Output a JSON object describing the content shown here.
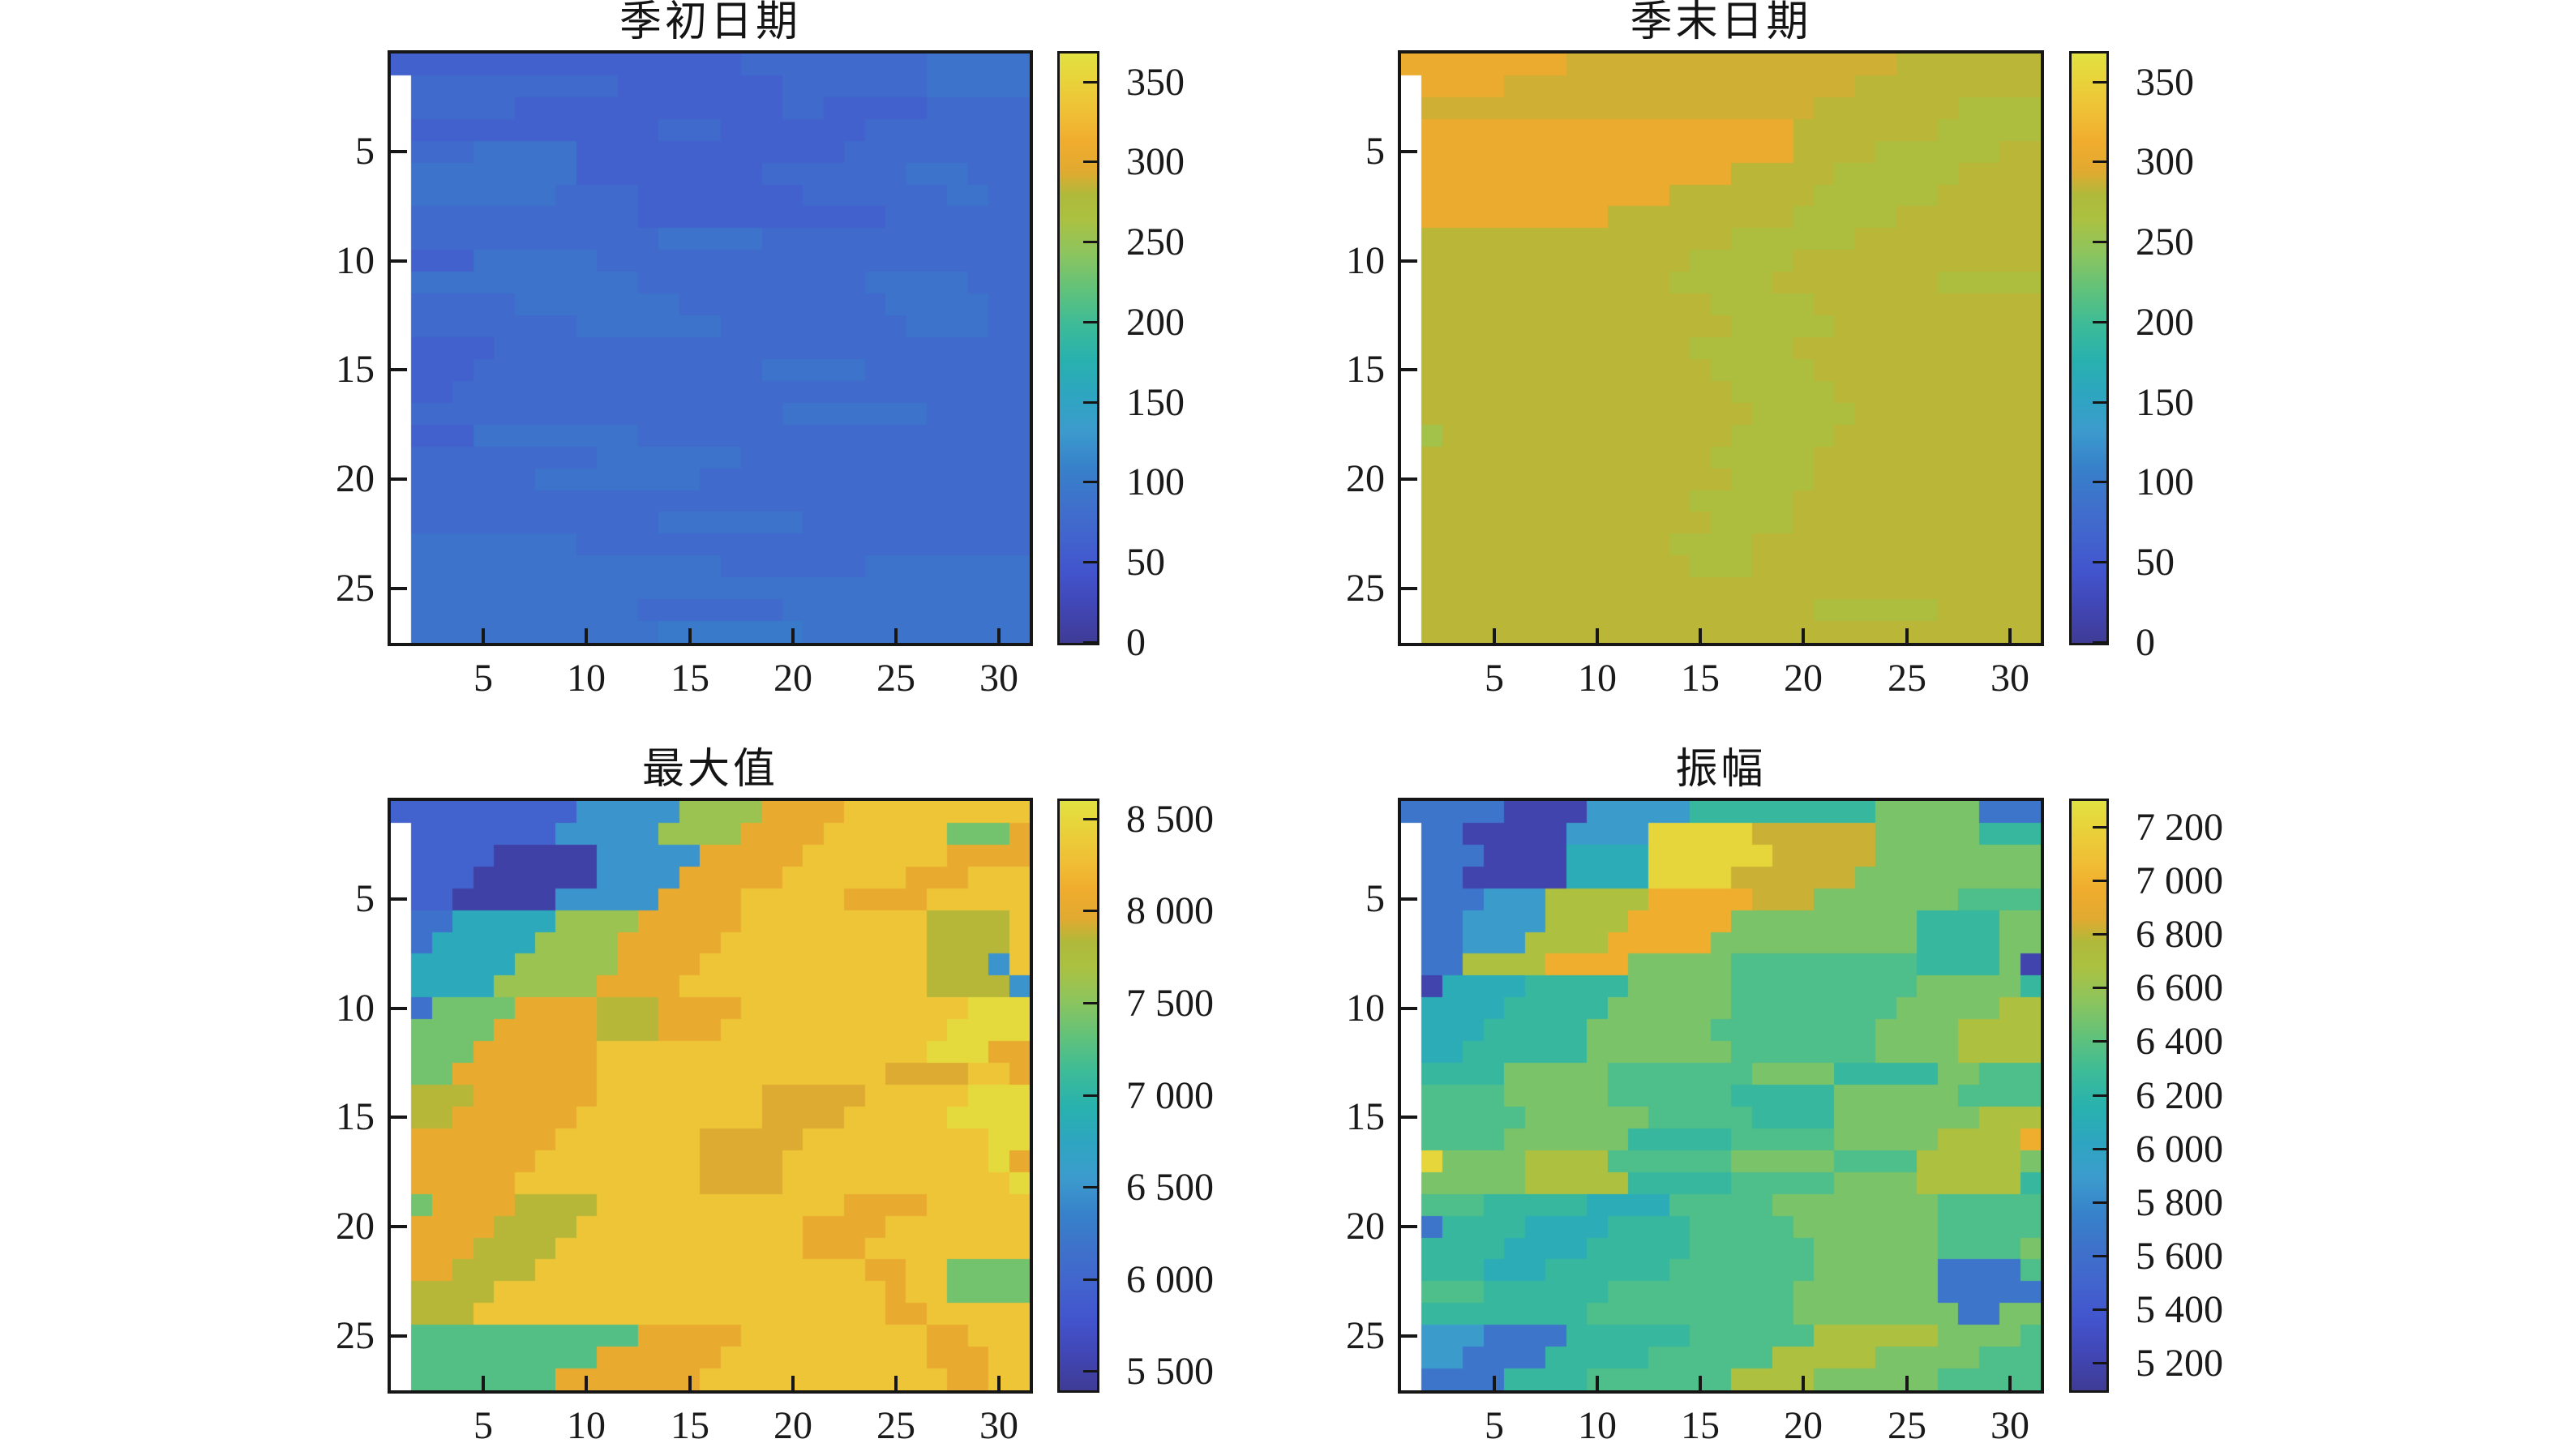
{
  "figure": {
    "background": "#ffffff",
    "axis_color": "#161616",
    "text_color": "#1a1a1a"
  },
  "colormap": {
    "name": "parula-like",
    "nan_color": "#ffffff",
    "stops": [
      [
        0.0,
        "#3f3c96"
      ],
      [
        0.06,
        "#4146b4"
      ],
      [
        0.12,
        "#4254cd"
      ],
      [
        0.18,
        "#4264cd"
      ],
      [
        0.24,
        "#3e72cb"
      ],
      [
        0.3,
        "#3782ca"
      ],
      [
        0.36,
        "#3c9bcd"
      ],
      [
        0.42,
        "#2ea5c0"
      ],
      [
        0.48,
        "#28b1ae"
      ],
      [
        0.54,
        "#3dbb98"
      ],
      [
        0.6,
        "#61c27a"
      ],
      [
        0.66,
        "#8cc45e"
      ],
      [
        0.72,
        "#acc141"
      ],
      [
        0.76,
        "#afb93a"
      ],
      [
        0.8,
        "#e1aa30"
      ],
      [
        0.85,
        "#f0ac2e"
      ],
      [
        0.89,
        "#f0bc34"
      ],
      [
        0.93,
        "#ecca38"
      ],
      [
        0.97,
        "#e6d83c"
      ],
      [
        1.0,
        "#e2e142"
      ]
    ]
  },
  "chart_data": [
    {
      "type": "heatmap",
      "title": "季初日期",
      "x_tick_values": [
        5,
        10,
        15,
        20,
        25,
        30
      ],
      "x_tick_labels": [
        "5",
        "10",
        "15",
        "20",
        "25",
        "30"
      ],
      "y_tick_values": [
        5,
        10,
        15,
        20,
        25
      ],
      "y_tick_labels": [
        "5",
        "10",
        "15",
        "20",
        "25"
      ],
      "n_cols": 31,
      "n_rows": 27,
      "vmin": 0,
      "vmax": 368,
      "colorbar_tick_values": [
        0,
        50,
        100,
        150,
        200,
        250,
        300,
        350
      ],
      "colorbar_tick_labels": [
        "0",
        "50",
        "100",
        "150",
        "200",
        "250",
        "300",
        "350"
      ],
      "nan_char": ".",
      "values_by_char": {
        "0": 52,
        "1": 62,
        "2": 76,
        "3": 90,
        "4": 100
      },
      "grid": [
        "1111111111111111122222222233333",
        ".222222222211111111222222233333",
        ".222221111111111111221111122222",
        ".111111111111222111111122222222",
        ".222333331111111111111222222222",
        ".333333331111111112222222333222",
        ".333333322221111111122222223322",
        ".222222222221111111111112222222",
        ".222222222222333332222222222222",
        ".111333333222222222222222222222",
        ".333333333332222222222233333222",
        ".222223333333322222222223333322",
        ".222222223333333222222222333322",
        ".111122222222222222222222222222",
        ".111222222222222223333322222222",
        ".112222222222222222222222222222",
        ".222222222222222222333333322222",
        ".111333333332222222222222222222",
        ".222222222333333322222222222222",
        ".222222333333332222222222222222",
        ".222222222222222222222222222222",
        ".222222222222333333322222222222",
        ".333333332222222222222222222222",
        ".333333333333333222222233333333",
        ".333333333333333333333333333333",
        ".333333333332222222333333333333",
        ".333333333333444444433333333333"
      ]
    },
    {
      "type": "heatmap",
      "title": "季末日期",
      "x_tick_values": [
        5,
        10,
        15,
        20,
        25,
        30
      ],
      "x_tick_labels": [
        "5",
        "10",
        "15",
        "20",
        "25",
        "30"
      ],
      "y_tick_values": [
        5,
        10,
        15,
        20,
        25
      ],
      "y_tick_labels": [
        "5",
        "10",
        "15",
        "20",
        "25"
      ],
      "n_cols": 31,
      "n_rows": 27,
      "vmin": 0,
      "vmax": 368,
      "colorbar_tick_values": [
        0,
        50,
        100,
        150,
        200,
        250,
        300,
        350
      ],
      "colorbar_tick_labels": [
        "0",
        "50",
        "100",
        "150",
        "200",
        "250",
        "300",
        "350"
      ],
      "nan_char": ".",
      "values_by_char": {
        "0": 258,
        "1": 270,
        "2": 283,
        "3": 289,
        "4": 306
      },
      "grid": [
        "4444444433333333333333332222222",
        ".444433333333333333333222222222",
        ".333333333333333333322222221111",
        ".444444444444444444222222211111",
        ".444444444444444444222211111122",
        ".444444444444444222221111112222",
        ".444444444444222222211111122222",
        ".444444444222222222111112222222",
        ".222222222222222111111222222222",
        ".222222222222211111222222222222",
        ".222222222222111112222222211111",
        ".222222222222221111122222222222",
        ".222222222222222111112222222222",
        ".222222222222211111222222222222",
        ".222222222222221111122222222222",
        ".222222222222222111112222222222",
        ".222222222222222211111222222222",
        ".022222222222222111112222222222",
        ".222222222222221111122222222222",
        ".222222222222222111122222222222",
        ".222222222222211111222222222222",
        ".222222222222221111222222222222",
        ".222222222222111122222222222222",
        ".222222222222211122222222222222",
        ".222222222222222222222222222222",
        ".222222222222222222211111122222",
        ".222222222222222222222222222222"
      ]
    },
    {
      "type": "heatmap",
      "title": "最大值",
      "x_tick_values": [
        5,
        10,
        15,
        20,
        25,
        30
      ],
      "x_tick_labels": [
        "5",
        "10",
        "15",
        "20",
        "25",
        "30"
      ],
      "y_tick_values": [
        5,
        10,
        15,
        20,
        25
      ],
      "y_tick_labels": [
        "5",
        "10",
        "15",
        "20",
        "25"
      ],
      "n_cols": 31,
      "n_rows": 27,
      "vmin": 5400,
      "vmax": 8600,
      "colorbar_tick_values": [
        5500,
        6000,
        6500,
        7000,
        7500,
        8000,
        8500
      ],
      "colorbar_tick_labels": [
        "5 500",
        "6 000",
        "6 500",
        "7 000",
        "7 500",
        "8 000",
        "8 500"
      ],
      "nan_char": ".",
      "values_by_char": {
        "0": 5500,
        "1": 5950,
        "2": 6150,
        "3": 6500,
        "4": 6800,
        "5": 7250,
        "6": 7400,
        "7": 7600,
        "8": 7850,
        "9": 8050,
        "a": 7950,
        "b": 8330,
        "c": 8520
      },
      "grid": [
        "1111111113333377779999bbbbbbbbb",
        ".11111113333377779999bbbbbb6669",
        ".1111000003333399999bbbbbbb9999",
        ".111000000333399999bbbbbb999bbb",
        ".1100000333339999bbbbb9999bbbbb",
        ".2244444777799999bbbbbbbbb8888b",
        ".244444777799999bbbbbbbbbb8888b",
        ".44444777779999bbbbbbbbbbb8883b",
        ".4444777779999bbbbbbbbbbbb88883",
        ".2666699998889999bbbbbbbbbbbccc",
        ".666699999888999bbbbbbbbbbbcccc",
        ".666999999bbbbbbbbbbbbbbbbccc99",
        ".669999999bbbbbbbbbbbbbbaaaabb9",
        ".888999999bbbbbbbbaaaaabbbbbccc",
        ".88999999bbbbbbbbbaaaabbbbbcccc",
        ".9999999bbbbbbbaaaaabbbbbbbbbcc",
        ".999999bbbbbbbbaaaabbbbbbbbbbc9",
        ".99999bbbbbbbbbaaaabbbbbbbbbbbc",
        ".699998888bbbbbbbbbbbb9999bbbbb",
        ".99998888bbbbbbbbbbb9999bbbbbbb",
        ".9998888bbbbbbbbbbbb999bbbbbbbb",
        ".998888bbbbbbbbbbbbbbbb99bb6666",
        ".8888bbbbbbbbbbbbbbbbbbb9bb6666",
        ".888bbbbbbbbbbbbbbbbbbbb99bbbbb",
        ".5555555555599999bbbbbbbbb99bbb",
        ".555555555999999bbbbbbbbbb999bb",
        ".55555559999999bbbbbbbbbbbb99bb"
      ]
    },
    {
      "type": "heatmap",
      "title": "振幅",
      "x_tick_values": [
        5,
        10,
        15,
        20,
        25,
        30
      ],
      "x_tick_labels": [
        "5",
        "10",
        "15",
        "20",
        "25",
        "30"
      ],
      "y_tick_values": [
        5,
        10,
        15,
        20,
        25
      ],
      "y_tick_labels": [
        "5",
        "10",
        "15",
        "20",
        "25"
      ],
      "n_cols": 31,
      "n_rows": 27,
      "vmin": 5100,
      "vmax": 7300,
      "colorbar_tick_values": [
        5200,
        5400,
        5600,
        5800,
        6000,
        6200,
        6400,
        6600,
        6800,
        7000,
        7200
      ],
      "colorbar_tick_labels": [
        "5 200",
        "5 400",
        "5 600",
        "5 800",
        "6 000",
        "6 200",
        "6 400",
        "6 600",
        "6 800",
        "7 000",
        "7 200"
      ],
      "nan_char": ".",
      "values_by_char": {
        "0": 5200,
        "1": 5650,
        "2": 5900,
        "3": 6100,
        "4": 6250,
        "5": 6350,
        "6": 6500,
        "7": 6700,
        "8": 6820,
        "9": 6980,
        "a": 7220
      },
      "grid": [
        "1111100002222244444444466666111",
        ".11000002222aaaaa88888866666444",
        ".11100003333aaaaaa8888866666666",
        ".11000003333aaaa888888666666666",
        ".111222777779999988866666665555",
        ".112222777799999666666666444466",
        ".112227777999996666666666444466",
        ".117777999966666555555555444460",
        ".033334444466666555555555666664",
        ".333344444666666555555556666677",
        ".333444446666665555555566667777",
        ".334444446666666555555566667777",
        ".444466666555555566664444466555",
        ".555566666555555444446666665555",
        ".555556666665555544446666666777",
        ".555566666644444555556666677779",
        ".a66667777555555666665555777776",
        ".666667777744444555556666777774",
        ".555444443333555556666666655555",
        ".144443333444455555666666655555",
        ".444433334444455555566666655556",
        ".444333444444555555566666611115",
        ".555444444555555555666666611111",
        ".444444445555555555666666661166",
        ".222111144444455555577777766665",
        ".221111444445555557777766666555",
        ".111144445555555777766666655555"
      ]
    }
  ]
}
